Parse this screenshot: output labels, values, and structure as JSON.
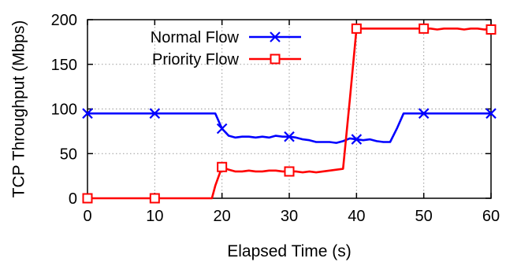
{
  "chart_data": {
    "type": "line",
    "xlabel": "Elapsed Time (s)",
    "ylabel": "TCP Throughput (Mbps)",
    "xlim": [
      0,
      60
    ],
    "ylim": [
      0,
      200
    ],
    "xticks": [
      0,
      10,
      20,
      30,
      40,
      50,
      60
    ],
    "yticks": [
      0,
      50,
      100,
      150,
      200
    ],
    "grid": true,
    "legend_position": "top-center",
    "series": [
      {
        "name": "Normal Flow",
        "color": "#0000ff",
        "marker": "x",
        "x": [
          0,
          10,
          19,
          20,
          21,
          22,
          23,
          24,
          25,
          26,
          27,
          28,
          29,
          30,
          31,
          32,
          33,
          34,
          35,
          36,
          37,
          38,
          39,
          40,
          41,
          42,
          43,
          44,
          45,
          46,
          47,
          48,
          49,
          50,
          55,
          60
        ],
        "y": [
          95,
          95,
          95,
          78,
          70,
          68,
          69,
          69,
          68,
          69,
          68,
          70,
          69,
          69,
          68,
          66,
          65,
          63,
          63,
          63,
          62,
          64,
          67,
          66,
          65,
          66,
          64,
          63,
          63,
          78,
          95,
          95,
          95,
          95,
          95,
          95
        ],
        "marker_x": [
          0,
          10,
          20,
          30,
          40,
          50,
          60
        ]
      },
      {
        "name": "Priority Flow",
        "color": "#ff0000",
        "marker": "square",
        "x": [
          0,
          10,
          18.5,
          19,
          20,
          21,
          22,
          23,
          24,
          25,
          26,
          27,
          28,
          29,
          30,
          31,
          32,
          33,
          34,
          35,
          36,
          37,
          38,
          39,
          40,
          41,
          42,
          43,
          44,
          45,
          46,
          47,
          48,
          49,
          50,
          51,
          52,
          53,
          54,
          55,
          56,
          57,
          58,
          59,
          60
        ],
        "y": [
          0,
          0,
          0,
          14,
          35,
          32,
          30,
          30,
          31,
          30,
          30,
          31,
          31,
          30,
          30,
          30,
          29,
          30,
          29,
          30,
          31,
          32,
          33,
          110,
          190,
          190,
          190,
          190,
          190,
          190,
          190,
          190,
          190,
          190,
          190,
          190,
          189,
          190,
          190,
          190,
          189,
          190,
          190,
          189,
          189
        ],
        "marker_x": [
          0,
          10,
          20,
          30,
          40,
          50,
          60
        ]
      }
    ]
  }
}
